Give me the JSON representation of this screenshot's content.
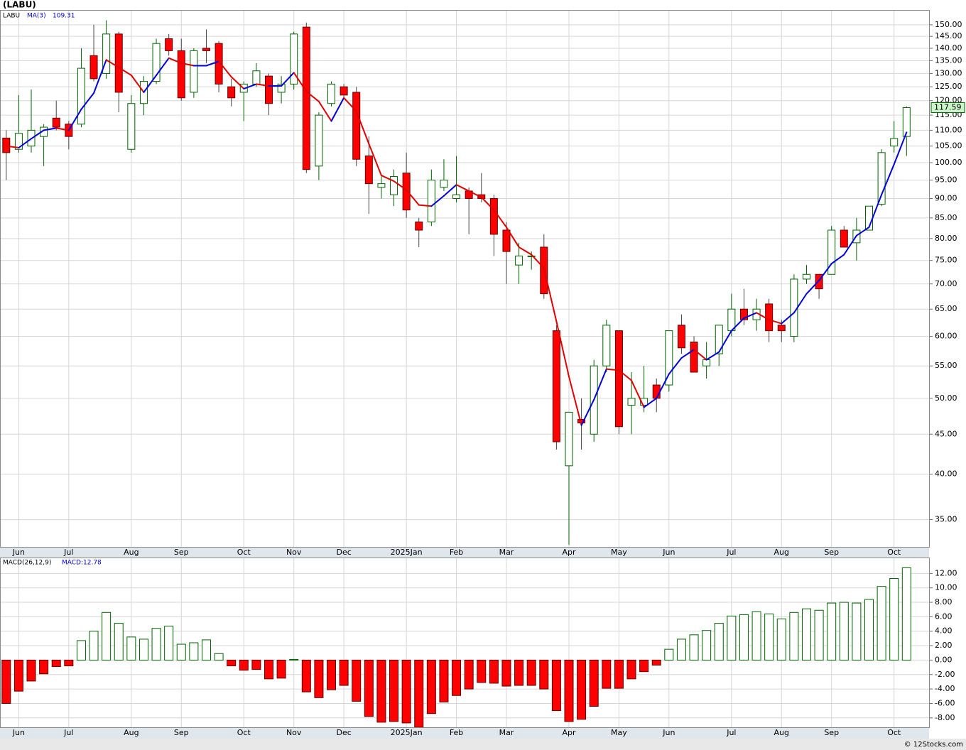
{
  "chart_data": [
    {
      "type": "candlestick",
      "title": "(LABU)",
      "symbol": "LABU",
      "log_scale": true,
      "grid": true,
      "xlim": [
        -0.5,
        73.8
      ],
      "xticks": [
        {
          "value": 1,
          "label": "Jun"
        },
        {
          "value": 5,
          "label": "Jul"
        },
        {
          "value": 10,
          "label": "Aug"
        },
        {
          "value": 14,
          "label": "Sep"
        },
        {
          "value": 19,
          "label": "Oct"
        },
        {
          "value": 23,
          "label": "Nov"
        },
        {
          "value": 27,
          "label": "Dec"
        },
        {
          "value": 32,
          "label": "2025Jan"
        },
        {
          "value": 36,
          "label": "Feb"
        },
        {
          "value": 40,
          "label": "Mar"
        },
        {
          "value": 45,
          "label": "Apr"
        },
        {
          "value": 49,
          "label": "May"
        },
        {
          "value": 53,
          "label": "Jun"
        },
        {
          "value": 58,
          "label": "Jul"
        },
        {
          "value": 62,
          "label": "Aug"
        },
        {
          "value": 66,
          "label": "Sep"
        },
        {
          "value": 71,
          "label": "Oct"
        }
      ],
      "ylim": [
        32.3,
        156.7
      ],
      "yticks": [
        {
          "value": 35,
          "label": "35.00"
        },
        {
          "value": 40,
          "label": "40.00"
        },
        {
          "value": 45,
          "label": "45.00"
        },
        {
          "value": 50,
          "label": "50.00"
        },
        {
          "value": 55,
          "label": "55.00"
        },
        {
          "value": 60,
          "label": "60.00"
        },
        {
          "value": 65,
          "label": "65.00"
        },
        {
          "value": 70,
          "label": "70.00"
        },
        {
          "value": 75,
          "label": "75.00"
        },
        {
          "value": 80,
          "label": "80.00"
        },
        {
          "value": 85,
          "label": "85.00"
        },
        {
          "value": 90,
          "label": "90.00"
        },
        {
          "value": 95,
          "label": "95.00"
        },
        {
          "value": 100,
          "label": "100.00"
        },
        {
          "value": 105,
          "label": "105.00"
        },
        {
          "value": 110,
          "label": "110.00"
        },
        {
          "value": 115,
          "label": "115.00"
        },
        {
          "value": 120,
          "label": "120.00"
        },
        {
          "value": 125,
          "label": "125.00"
        },
        {
          "value": 130,
          "label": "130.00"
        },
        {
          "value": 135,
          "label": "135.00"
        },
        {
          "value": 140,
          "label": "140.00"
        },
        {
          "value": 145,
          "label": "145.00"
        },
        {
          "value": 150,
          "label": "150.00"
        }
      ],
      "open": [
        107.5,
        104,
        105,
        108,
        114,
        112,
        112,
        137,
        130,
        146,
        104,
        119,
        127,
        144,
        139,
        123,
        140,
        142,
        125,
        123,
        126,
        129,
        123,
        126,
        149,
        99,
        119,
        125,
        123,
        102,
        93,
        91,
        97,
        84,
        84,
        93,
        90,
        92,
        91,
        90,
        82,
        74,
        76,
        78,
        61,
        41,
        47,
        45,
        55,
        61,
        49,
        49,
        52,
        52,
        62,
        59,
        55,
        57,
        61,
        65,
        63,
        66,
        62,
        60,
        71,
        72,
        72,
        82,
        79,
        82,
        88.5,
        105,
        108
      ],
      "high": [
        110,
        122,
        124,
        112,
        120,
        113,
        140,
        150,
        152,
        147,
        122,
        129,
        144,
        146,
        144,
        140,
        148,
        143,
        128,
        127,
        134,
        130,
        129,
        147,
        151,
        116,
        127,
        126,
        125,
        108,
        96,
        98,
        103,
        85,
        98,
        101,
        102,
        93,
        97,
        91,
        84,
        79,
        77,
        81,
        62,
        48,
        50,
        56,
        63,
        61,
        54,
        55,
        53,
        61,
        64,
        60,
        59,
        62,
        68,
        69,
        67,
        67,
        63,
        72,
        74,
        72,
        83,
        83,
        85,
        88,
        104,
        113,
        118
      ],
      "low": [
        95,
        103,
        103,
        99,
        110,
        104,
        111,
        127,
        128,
        116,
        103,
        115,
        126,
        137,
        120,
        121,
        134,
        123,
        118,
        113,
        125,
        115,
        119,
        124,
        97,
        95,
        118,
        121,
        99,
        86,
        90,
        88,
        85,
        78,
        83,
        92,
        89,
        81,
        89,
        76,
        70,
        70,
        73,
        67,
        43,
        32.5,
        43,
        44,
        54,
        45,
        45,
        48,
        48,
        51,
        57,
        54,
        53,
        55,
        60,
        62,
        61,
        59,
        59,
        59,
        70,
        67,
        72,
        78,
        75,
        82,
        88,
        103,
        102
      ],
      "close": [
        103,
        109,
        110,
        111,
        111,
        108,
        132,
        128,
        146,
        123,
        119,
        127,
        142,
        139,
        121,
        139,
        139,
        126,
        121,
        126,
        131,
        119,
        126,
        146,
        98,
        115,
        126,
        122,
        101,
        94,
        94,
        96,
        87,
        82,
        95,
        95,
        91,
        90,
        90,
        81,
        77,
        76,
        76,
        68,
        44,
        48,
        46.5,
        55,
        62,
        46,
        50,
        50,
        50,
        61,
        58,
        54,
        56,
        62,
        65,
        63,
        65,
        61,
        61,
        71,
        72,
        69,
        82,
        78,
        82,
        88,
        103,
        107.35,
        117.59
      ],
      "up_color": "#006400",
      "down_color": "#ff0000",
      "series": [
        {
          "name": "MA(3)",
          "up_color": "#0000dd",
          "down_color": "#e00000",
          "values": [
            105,
            104.5,
            107.3,
            110,
            110.7,
            110,
            117,
            122.7,
            135.3,
            132.3,
            129.3,
            123,
            129.3,
            136,
            134,
            133,
            133,
            134.7,
            128.7,
            124.3,
            126,
            125.3,
            125.3,
            130.3,
            123.3,
            119.7,
            113,
            121,
            116.3,
            105.7,
            96.3,
            94.7,
            92.3,
            88.3,
            88,
            90.7,
            93.7,
            92,
            90.3,
            87,
            82.7,
            78,
            76.3,
            73.3,
            62.7,
            53.3,
            46.2,
            49.8,
            54.5,
            54.3,
            52.7,
            48.7,
            50,
            53.7,
            56.3,
            57.7,
            56,
            57.3,
            61,
            63.3,
            64.3,
            63,
            62.3,
            64.3,
            68,
            70.7,
            74.3,
            76.3,
            80.7,
            82.7,
            91,
            99.5,
            109.31
          ]
        }
      ]
    },
    {
      "type": "bar",
      "title": "MACD(26,12,9)",
      "value_label": "MACD:12.78",
      "xlim": [
        -0.5,
        73.8
      ],
      "xticks": [
        {
          "value": 1,
          "label": "Jun"
        },
        {
          "value": 5,
          "label": "Jul"
        },
        {
          "value": 10,
          "label": "Aug"
        },
        {
          "value": 14,
          "label": "Sep"
        },
        {
          "value": 19,
          "label": "Oct"
        },
        {
          "value": 23,
          "label": "Nov"
        },
        {
          "value": 27,
          "label": "Dec"
        },
        {
          "value": 32,
          "label": "2025Jan"
        },
        {
          "value": 36,
          "label": "Feb"
        },
        {
          "value": 40,
          "label": "Mar"
        },
        {
          "value": 45,
          "label": "Apr"
        },
        {
          "value": 49,
          "label": "May"
        },
        {
          "value": 53,
          "label": "Jun"
        },
        {
          "value": 58,
          "label": "Jul"
        },
        {
          "value": 62,
          "label": "Aug"
        },
        {
          "value": 66,
          "label": "Sep"
        },
        {
          "value": 71,
          "label": "Oct"
        }
      ],
      "ylim": [
        -9.3,
        14.2
      ],
      "yticks": [
        {
          "value": -8,
          "label": "-8.00"
        },
        {
          "value": -6,
          "label": "-6.00"
        },
        {
          "value": -4,
          "label": "-4.00"
        },
        {
          "value": -2,
          "label": "-2.00"
        },
        {
          "value": 0,
          "label": "0.00"
        },
        {
          "value": 2,
          "label": "2.00"
        },
        {
          "value": 4,
          "label": "4.00"
        },
        {
          "value": 6,
          "label": "6.00"
        },
        {
          "value": 8,
          "label": "8.00"
        },
        {
          "value": 10,
          "label": "10.00"
        },
        {
          "value": 12,
          "label": "12.00"
        }
      ],
      "grid": true,
      "up_color": "#006400",
      "down_color": "#ff0000",
      "values": [
        -6,
        -4.3,
        -2.9,
        -1.9,
        -0.9,
        -0.8,
        2.7,
        4,
        6.6,
        5.1,
        3.2,
        2.9,
        4.4,
        4.7,
        2.2,
        2.4,
        2.8,
        0.9,
        -0.8,
        -1.4,
        -1.3,
        -2.6,
        -2.5,
        0.1,
        -4.4,
        -5.2,
        -4.1,
        -3.5,
        -5.7,
        -7.8,
        -8.6,
        -8.5,
        -8.7,
        -9.3,
        -7.4,
        -5.8,
        -4.9,
        -4,
        -3.1,
        -3.2,
        -3.6,
        -3.5,
        -3.5,
        -4,
        -7,
        -8.5,
        -8.2,
        -6.4,
        -3.9,
        -3.9,
        -2.6,
        -1.6,
        -0.7,
        1.5,
        2.9,
        3.5,
        4.1,
        5.1,
        6.1,
        6.3,
        6.7,
        6.4,
        5.7,
        6.6,
        7.1,
        6.9,
        7.9,
        8,
        7.9,
        8.4,
        10.2,
        11.3,
        12.78
      ]
    }
  ],
  "copyright": "© 12Stocks.com"
}
